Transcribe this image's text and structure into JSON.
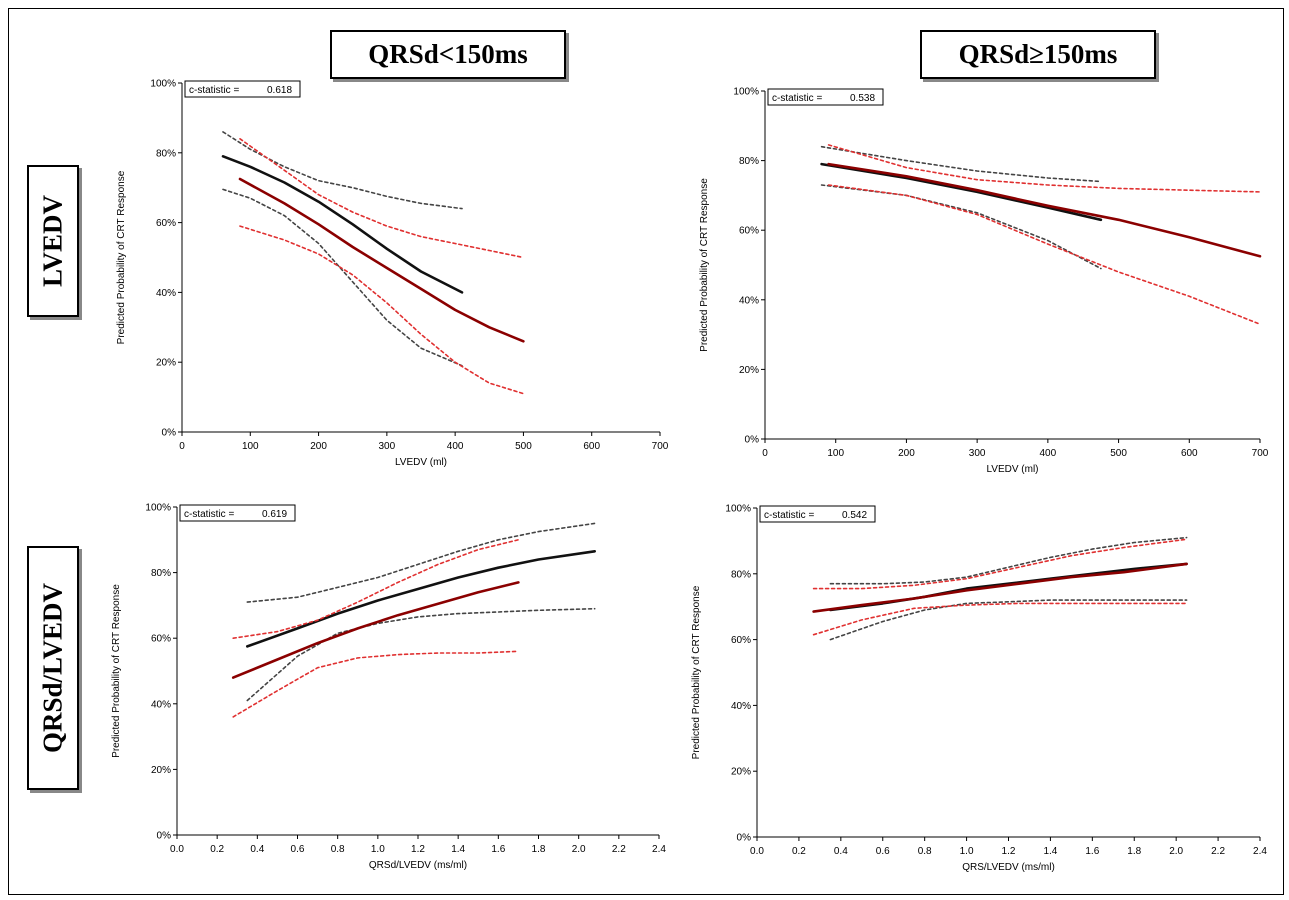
{
  "headers": {
    "col1": "QRSd<150ms",
    "col2": "QRSd≥150ms",
    "row1": "LVEDV",
    "row2": "QRSd/LVEDV"
  },
  "colors": {
    "black": "#111111",
    "red": "#8b0000",
    "dotted_black": "#444444",
    "dotted_red": "#e03030"
  },
  "chart_data": [
    {
      "type": "line",
      "annotation": {
        "label": "c-statistic =",
        "value": "0.618"
      },
      "xlabel": "LVEDV (ml)",
      "ylabel": "Predicted Probability of CRT Response",
      "xlim": [
        0,
        700
      ],
      "ylim": [
        0,
        100
      ],
      "x_ticks": [
        "0",
        "100",
        "200",
        "300",
        "400",
        "500",
        "600",
        "700"
      ],
      "y_ticks": [
        "0%",
        "20%",
        "40%",
        "60%",
        "80%",
        "100%"
      ],
      "series": [
        {
          "style": "black",
          "x": [
            60,
            100,
            150,
            200,
            250,
            300,
            350,
            410
          ],
          "y": [
            79,
            76,
            71.5,
            66,
            59.5,
            52.5,
            46,
            40
          ]
        },
        {
          "style": "dotted-black",
          "x": [
            60,
            100,
            150,
            200,
            250,
            300,
            350,
            410
          ],
          "y": [
            86,
            81,
            76,
            72,
            70,
            67.5,
            65.5,
            64
          ]
        },
        {
          "style": "dotted-black",
          "x": [
            60,
            100,
            150,
            200,
            250,
            300,
            350,
            410
          ],
          "y": [
            69.5,
            67,
            62,
            54,
            43,
            32,
            24,
            19
          ]
        },
        {
          "style": "red",
          "x": [
            85,
            150,
            200,
            250,
            300,
            350,
            400,
            450,
            500
          ],
          "y": [
            72.5,
            65.5,
            59.5,
            53,
            47,
            41,
            35,
            30,
            26
          ]
        },
        {
          "style": "dotted-red",
          "x": [
            85,
            150,
            200,
            250,
            300,
            350,
            400,
            450,
            500
          ],
          "y": [
            84,
            75,
            68,
            63,
            59,
            56,
            54,
            52,
            50
          ]
        },
        {
          "style": "dotted-red",
          "x": [
            85,
            150,
            200,
            250,
            300,
            350,
            400,
            450,
            500
          ],
          "y": [
            59,
            55,
            51,
            45,
            37,
            28,
            20,
            14,
            11
          ]
        }
      ]
    },
    {
      "type": "line",
      "annotation": {
        "label": "c-statistic =",
        "value": "0.538"
      },
      "xlabel": "LVEDV (ml)",
      "ylabel": "Predicted Probability of CRT Response",
      "xlim": [
        0,
        700
      ],
      "ylim": [
        0,
        100
      ],
      "x_ticks": [
        "0",
        "100",
        "200",
        "300",
        "400",
        "500",
        "600",
        "700"
      ],
      "y_ticks": [
        "0%",
        "20%",
        "40%",
        "60%",
        "80%",
        "100%"
      ],
      "series": [
        {
          "style": "black",
          "x": [
            80,
            200,
            300,
            400,
            475
          ],
          "y": [
            79,
            75,
            71,
            66.5,
            63
          ]
        },
        {
          "style": "dotted-black",
          "x": [
            80,
            200,
            300,
            400,
            475
          ],
          "y": [
            84,
            80,
            77,
            75,
            74
          ]
        },
        {
          "style": "dotted-black",
          "x": [
            80,
            200,
            300,
            400,
            475
          ],
          "y": [
            73,
            70,
            65,
            57,
            49
          ]
        },
        {
          "style": "red",
          "x": [
            90,
            200,
            300,
            400,
            500,
            600,
            700
          ],
          "y": [
            79,
            75.5,
            71.5,
            67,
            63,
            58,
            52.5
          ]
        },
        {
          "style": "dotted-red",
          "x": [
            90,
            200,
            300,
            400,
            500,
            600,
            700
          ],
          "y": [
            84.5,
            78,
            74.5,
            73,
            72,
            71.5,
            71
          ]
        },
        {
          "style": "dotted-red",
          "x": [
            90,
            200,
            300,
            400,
            500,
            600,
            700
          ],
          "y": [
            73,
            70,
            64.5,
            56,
            48,
            41,
            33
          ]
        }
      ]
    },
    {
      "type": "line",
      "annotation": {
        "label": "c-statistic =",
        "value": "0.619"
      },
      "xlabel": "QRSd/LVEDV (ms/ml)",
      "ylabel": "Predicted Probability of CRT Response",
      "xlim": [
        0,
        2.4
      ],
      "ylim": [
        0,
        100
      ],
      "x_ticks": [
        "0.0",
        "0.2",
        "0.4",
        "0.6",
        "0.8",
        "1.0",
        "1.2",
        "1.4",
        "1.6",
        "1.8",
        "2.0",
        "2.2",
        "2.4"
      ],
      "y_ticks": [
        "0%",
        "20%",
        "40%",
        "60%",
        "80%",
        "100%"
      ],
      "series": [
        {
          "style": "black",
          "x": [
            0.35,
            0.6,
            0.8,
            1.0,
            1.2,
            1.4,
            1.6,
            1.8,
            2.08
          ],
          "y": [
            57.5,
            63,
            67.5,
            71.5,
            75,
            78.5,
            81.5,
            84,
            86.5
          ]
        },
        {
          "style": "dotted-black",
          "x": [
            0.35,
            0.6,
            0.8,
            1.0,
            1.2,
            1.4,
            1.6,
            1.8,
            2.08
          ],
          "y": [
            71,
            72.5,
            75.5,
            78.5,
            82.5,
            86.5,
            90,
            92.5,
            95
          ]
        },
        {
          "style": "dotted-black",
          "x": [
            0.35,
            0.6,
            0.8,
            1.0,
            1.2,
            1.4,
            1.6,
            1.8,
            2.08
          ],
          "y": [
            41,
            54.5,
            61.5,
            64.5,
            66.5,
            67.5,
            68,
            68.5,
            69
          ]
        },
        {
          "style": "red",
          "x": [
            0.28,
            0.5,
            0.7,
            0.9,
            1.1,
            1.3,
            1.5,
            1.7
          ],
          "y": [
            48,
            53.5,
            58.5,
            63,
            67,
            70.5,
            74,
            77
          ]
        },
        {
          "style": "dotted-red",
          "x": [
            0.28,
            0.5,
            0.7,
            0.9,
            1.1,
            1.3,
            1.5,
            1.7
          ],
          "y": [
            60,
            62,
            65.5,
            71,
            77,
            82.5,
            87,
            90
          ]
        },
        {
          "style": "dotted-red",
          "x": [
            0.28,
            0.5,
            0.7,
            0.9,
            1.1,
            1.3,
            1.5,
            1.7
          ],
          "y": [
            36,
            44,
            51,
            54,
            55,
            55.5,
            55.5,
            56
          ]
        }
      ]
    },
    {
      "type": "line",
      "annotation": {
        "label": "c-statistic =",
        "value": "0.542"
      },
      "xlabel": "QRS/LVEDV (ms/ml)",
      "ylabel": "Predicted Probability of CRT Response",
      "xlim": [
        0,
        2.4
      ],
      "ylim": [
        0,
        100
      ],
      "x_ticks": [
        "0.0",
        "0.2",
        "0.4",
        "0.6",
        "0.8",
        "1.0",
        "1.2",
        "1.4",
        "1.6",
        "1.8",
        "2.0",
        "2.2",
        "2.4"
      ],
      "y_ticks": [
        "0%",
        "20%",
        "40%",
        "60%",
        "80%",
        "100%"
      ],
      "series": [
        {
          "style": "black",
          "x": [
            0.35,
            0.6,
            0.8,
            1.0,
            1.2,
            1.4,
            1.6,
            1.8,
            2.05
          ],
          "y": [
            69,
            71,
            73,
            75.5,
            77,
            78.5,
            80,
            81.5,
            83
          ]
        },
        {
          "style": "dotted-black",
          "x": [
            0.35,
            0.6,
            0.8,
            1.0,
            1.2,
            1.4,
            1.6,
            1.8,
            2.05
          ],
          "y": [
            77,
            77,
            77.5,
            79,
            82,
            85,
            87.5,
            89.5,
            91
          ]
        },
        {
          "style": "dotted-black",
          "x": [
            0.35,
            0.6,
            0.8,
            1.0,
            1.2,
            1.4,
            1.6,
            1.8,
            2.05
          ],
          "y": [
            60,
            65.5,
            69,
            71,
            71.5,
            72,
            72,
            72,
            72
          ]
        },
        {
          "style": "red",
          "x": [
            0.27,
            0.5,
            0.75,
            1.0,
            1.25,
            1.5,
            1.75,
            2.05
          ],
          "y": [
            68.5,
            70.5,
            72.5,
            75,
            77,
            79,
            80.5,
            83
          ]
        },
        {
          "style": "dotted-red",
          "x": [
            0.27,
            0.5,
            0.75,
            1.0,
            1.25,
            1.5,
            1.75,
            2.05
          ],
          "y": [
            75.5,
            75.5,
            76.5,
            78.5,
            82,
            85.5,
            88,
            90.5
          ]
        },
        {
          "style": "dotted-red",
          "x": [
            0.27,
            0.5,
            0.75,
            1.0,
            1.25,
            1.5,
            1.75,
            2.05
          ],
          "y": [
            61.5,
            66,
            69.5,
            70.5,
            71,
            71,
            71,
            71
          ]
        }
      ]
    }
  ]
}
